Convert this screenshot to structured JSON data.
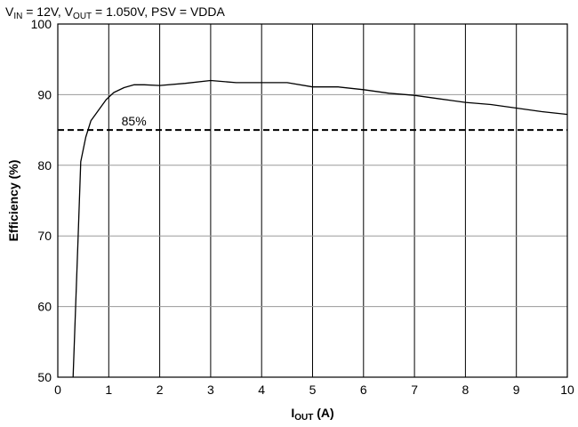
{
  "chart_data": {
    "type": "line",
    "title": {
      "v_in": "V",
      "v_in_sub": "IN",
      "v_in_rest": " = 12V, ",
      "v_out": "V",
      "v_out_sub": "OUT",
      "v_out_rest": " = 1.050V, PSV = VDDA"
    },
    "xlabel": {
      "main": "I",
      "sub": "OUT",
      "rest": " (A)"
    },
    "ylabel": "Efficiency (%)",
    "xlim": [
      0,
      10
    ],
    "ylim": [
      50,
      100
    ],
    "x_ticks": [
      0,
      1,
      2,
      3,
      4,
      5,
      6,
      7,
      8,
      9,
      10
    ],
    "y_ticks": [
      50,
      60,
      70,
      80,
      90,
      100
    ],
    "grid": true,
    "reference_line": {
      "y": 85,
      "label": "85%",
      "label_x": 1.25,
      "style": "dashed"
    },
    "series": [
      {
        "x": [
          0.3,
          0.4,
          0.45,
          0.55,
          0.65,
          0.8,
          0.95,
          1.1,
          1.3,
          1.5,
          1.7,
          2.0,
          2.5,
          3.0,
          3.5,
          4.0,
          4.5,
          5.0,
          5.5,
          6.0,
          6.5,
          7.0,
          7.5,
          8.0,
          8.5,
          9.0,
          9.5,
          10.0
        ],
        "y": [
          50,
          70,
          80.5,
          84,
          86.3,
          87.8,
          89.3,
          90.3,
          91.0,
          91.4,
          91.4,
          91.3,
          91.6,
          92.0,
          91.7,
          91.7,
          91.7,
          91.1,
          91.1,
          90.7,
          90.2,
          89.9,
          89.4,
          88.9,
          88.6,
          88.1,
          87.6,
          87.2
        ]
      }
    ]
  }
}
